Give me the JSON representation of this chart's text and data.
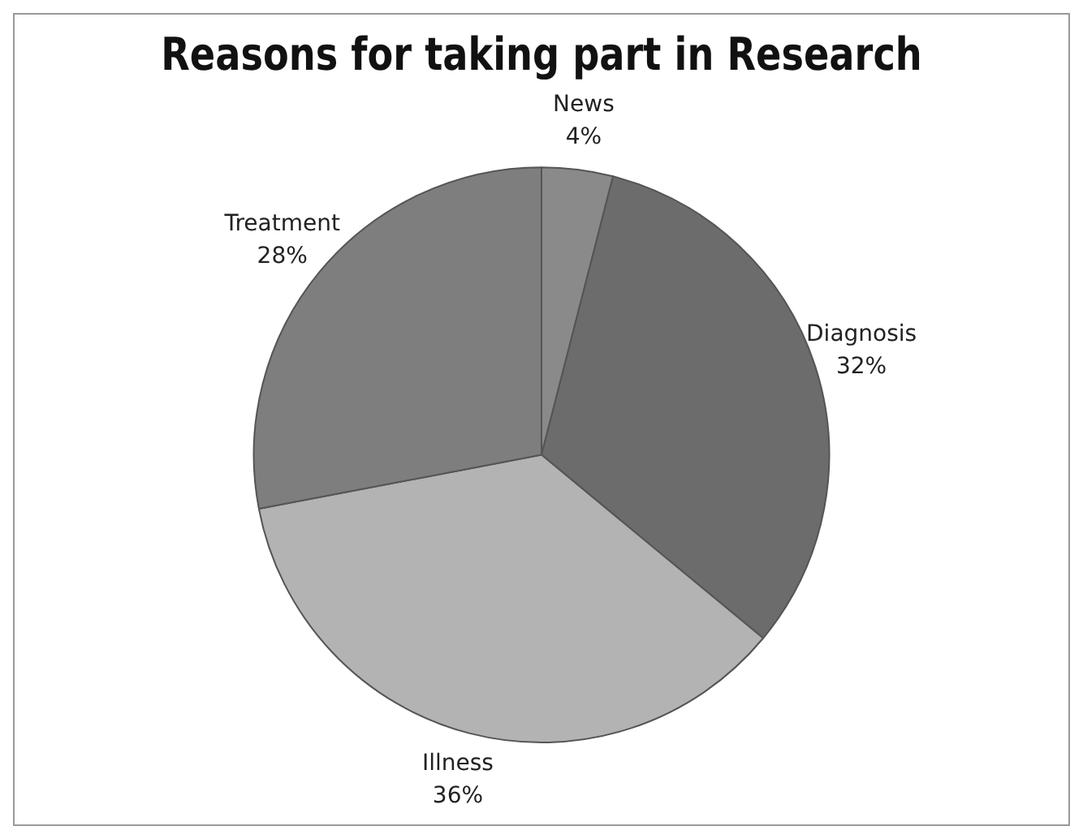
{
  "chart_data": {
    "type": "pie",
    "title": "Reasons for taking part in Research",
    "categories": [
      "News",
      "Diagnosis",
      "Illness",
      "Treatment"
    ],
    "values": [
      4,
      32,
      36,
      28
    ],
    "value_labels": [
      "4%",
      "32%",
      "36%",
      "28%"
    ],
    "colors": [
      "#8a8a8a",
      "#6c6c6c",
      "#b3b3b3",
      "#7e7e7e"
    ],
    "legend": false
  }
}
